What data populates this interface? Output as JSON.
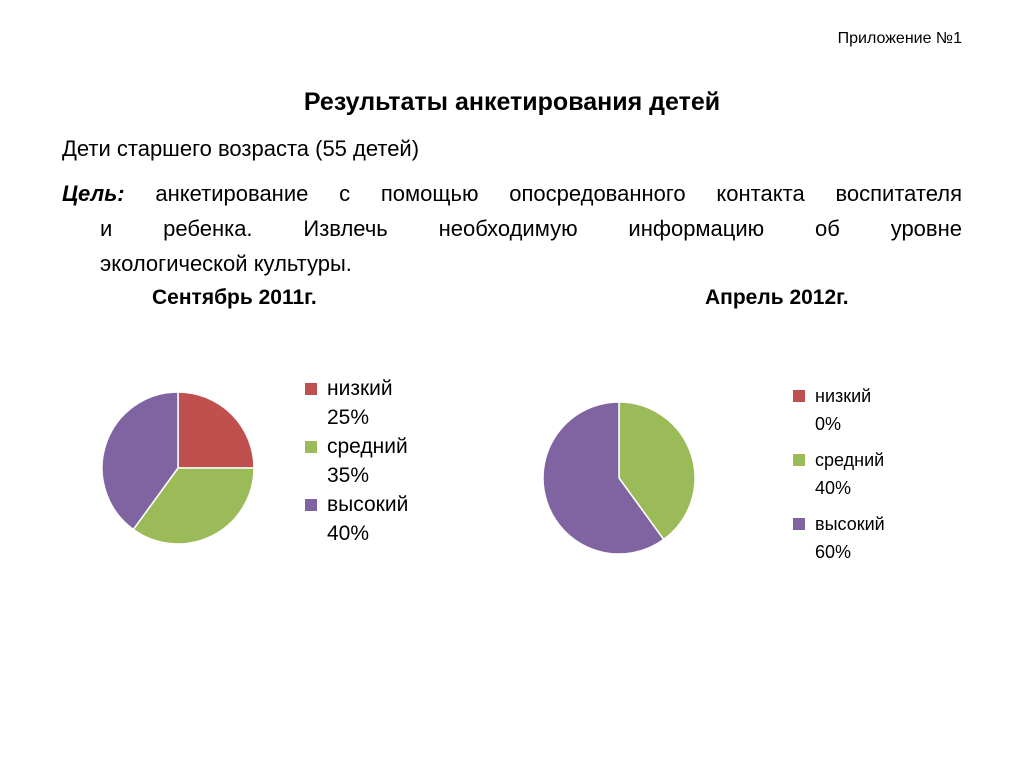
{
  "header": {
    "appendix": "Приложение №1",
    "title": "Результаты анкетирования детей",
    "subtitle": "Дети старшего возраста (55 детей)"
  },
  "goal": {
    "label": "Цель:",
    "line1": "анкетирование с помощью опосредованного контакта воспитателя",
    "line2": "и ребенка. Извлечь необходимую информацию об уровне",
    "line3": "экологической культуры."
  },
  "colors": {
    "low": "#C0504D",
    "medium": "#9BBB59",
    "high": "#8064A2"
  },
  "chart_data": [
    {
      "type": "pie",
      "title": "Сентябрь 2011г.",
      "categories": [
        "низкий",
        "средний",
        "высокий"
      ],
      "values": [
        25,
        35,
        40
      ],
      "value_labels": [
        "25%",
        "35%",
        "40%"
      ],
      "colors": [
        "#C0504D",
        "#9BBB59",
        "#8064A2"
      ],
      "legend": "right"
    },
    {
      "type": "pie",
      "title": "Апрель 2012г.",
      "categories": [
        "низкий",
        "средний",
        "высокий"
      ],
      "values": [
        0,
        40,
        60
      ],
      "value_labels": [
        "0%",
        "40%",
        "60%"
      ],
      "colors": [
        "#C0504D",
        "#9BBB59",
        "#8064A2"
      ],
      "legend": "right"
    }
  ]
}
